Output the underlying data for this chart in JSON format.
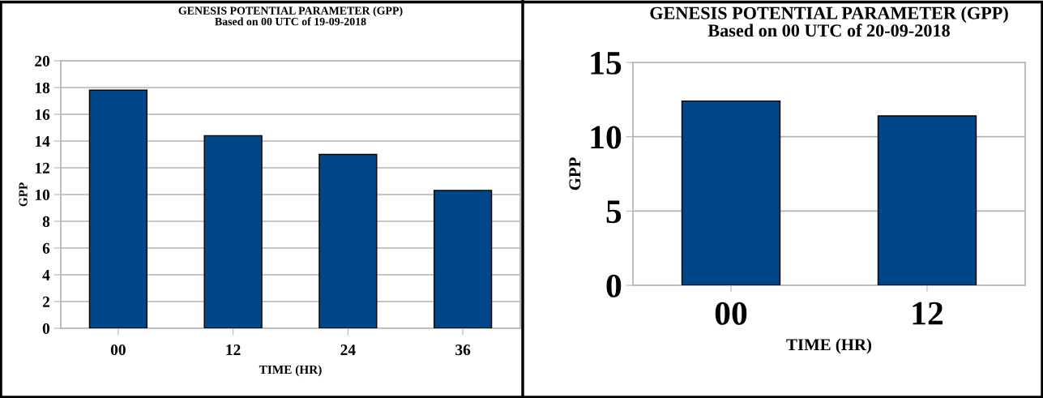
{
  "chart_data": [
    {
      "type": "bar",
      "title": "GENESIS POTENTIAL PARAMETER (GPP)",
      "subtitle": "Based on 00 UTC of 19-09-2018",
      "xlabel": "TIME (HR)",
      "ylabel": "GPP",
      "categories": [
        "00",
        "12",
        "24",
        "36"
      ],
      "values": [
        17.8,
        14.4,
        13.0,
        10.3
      ],
      "color": "#00478a",
      "ylim": [
        0,
        20
      ],
      "yticks": [
        0,
        2,
        4,
        6,
        8,
        10,
        12,
        14,
        16,
        18,
        20
      ],
      "grid": "y",
      "legend": false
    },
    {
      "type": "bar",
      "title": "GENESIS POTENTIAL PARAMETER (GPP)",
      "subtitle": "Based on 00 UTC of 20-09-2018",
      "xlabel": "TIME (HR)",
      "ylabel": "GPP",
      "categories": [
        "00",
        "12"
      ],
      "values": [
        12.4,
        11.4
      ],
      "color": "#00478a",
      "ylim": [
        0,
        15
      ],
      "yticks": [
        0,
        5,
        10,
        15
      ],
      "grid": "y",
      "legend": false
    }
  ]
}
